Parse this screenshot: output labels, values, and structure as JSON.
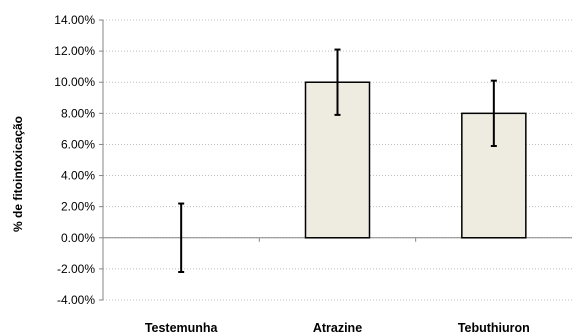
{
  "chart_data": {
    "type": "bar",
    "title": "",
    "xlabel": "",
    "ylabel": "% de fitointoxicação",
    "categories": [
      "Testemunha",
      "Atrazine",
      "Tebuthiuron"
    ],
    "values": [
      0.0,
      10.0,
      8.0
    ],
    "error": [
      2.2,
      2.1,
      2.1
    ],
    "ylim": [
      -4.0,
      14.0
    ],
    "yticks": [
      14.0,
      12.0,
      10.0,
      8.0,
      6.0,
      4.0,
      2.0,
      0.0,
      -2.0,
      -4.0
    ],
    "ytick_labels": [
      "14.00%",
      "12.00%",
      "10.00%",
      "8.00%",
      "6.00%",
      "4.00%",
      "2.00%",
      "0.00%",
      "-2.00%",
      "-4.00%"
    ],
    "grid": true,
    "bar_color": "#eeece1",
    "bar_edge_color": "#000000",
    "grid_color": "#bfbfbf",
    "axis_color": "#868686"
  }
}
